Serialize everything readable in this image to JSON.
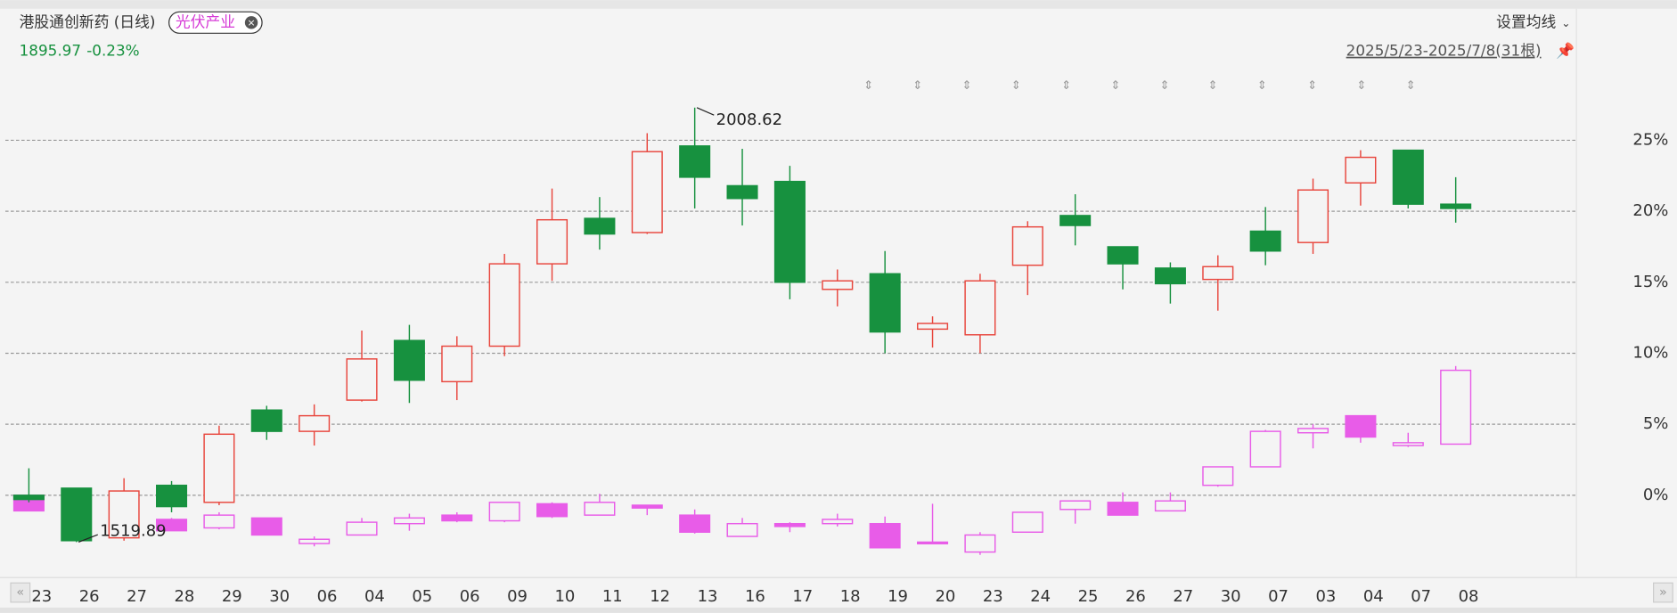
{
  "chart_data": {
    "type": "candlestick",
    "title": "港股通创新药 (日线)",
    "price_label": "1895.97",
    "change_label": "-0.23%",
    "ma_setting": "设置均线",
    "range_label": "2025/5/23-2025/7/8(31根)",
    "high_label": "2008.62",
    "low_label": "1519.89",
    "categories": [
      "23",
      "26",
      "27",
      "28",
      "29",
      "30",
      "06",
      "04",
      "05",
      "06",
      "09",
      "10",
      "11",
      "12",
      "13",
      "16",
      "17",
      "18",
      "19",
      "20",
      "23",
      "24",
      "25",
      "26",
      "27",
      "30",
      "07",
      "03",
      "04",
      "07",
      "08"
    ],
    "ylim": [
      -5.8,
      29.6
    ],
    "yticks": [
      {
        "value": 0,
        "label": "0%"
      },
      {
        "value": 5,
        "label": "5%"
      },
      {
        "value": 10,
        "label": "10%"
      },
      {
        "value": 15,
        "label": "15%"
      },
      {
        "value": 20,
        "label": "20%"
      },
      {
        "value": 25,
        "label": "25%"
      }
    ],
    "grid": true,
    "series": [
      {
        "up_color": "#e8453c",
        "down_color": "#17913f",
        "hollow_up": true,
        "open": [
          0.0,
          0.5,
          -3.0,
          0.7,
          -0.5,
          6.0,
          4.5,
          6.7,
          10.9,
          8.0,
          10.5,
          16.3,
          19.5,
          18.5,
          24.6,
          21.8,
          22.1,
          14.5,
          15.6,
          11.7,
          11.3,
          16.2,
          19.7,
          17.5,
          16.0,
          15.2,
          18.6,
          17.8,
          22.0,
          24.3,
          20.5
        ],
        "high": [
          1.9,
          0.5,
          1.2,
          1.0,
          4.9,
          6.3,
          6.4,
          11.6,
          12.0,
          11.2,
          17.0,
          21.6,
          21.0,
          25.5,
          27.3,
          24.4,
          23.2,
          15.9,
          17.2,
          12.6,
          15.6,
          19.3,
          21.2,
          17.5,
          16.4,
          16.9,
          20.3,
          22.3,
          24.3,
          24.3,
          22.4
        ],
        "low": [
          -0.5,
          -3.3,
          -3.2,
          -1.2,
          -0.7,
          3.9,
          3.5,
          6.6,
          6.5,
          6.7,
          9.8,
          15.1,
          17.3,
          18.4,
          20.2,
          19.0,
          13.8,
          13.3,
          10.0,
          10.4,
          10.0,
          14.1,
          17.6,
          14.5,
          13.5,
          13.0,
          16.2,
          17.0,
          20.4,
          20.2,
          19.2
        ],
        "close": [
          -0.3,
          -3.2,
          0.3,
          -0.8,
          4.3,
          4.5,
          5.6,
          9.6,
          8.1,
          10.5,
          16.3,
          19.4,
          18.4,
          24.2,
          22.4,
          20.9,
          15.0,
          15.1,
          11.5,
          12.1,
          15.1,
          18.9,
          19.0,
          16.3,
          14.9,
          16.1,
          17.2,
          21.5,
          23.8,
          20.5,
          20.2
        ]
      },
      {
        "name": "光伏产业",
        "up_color": "#e85ce8",
        "down_color": "#e85ce8",
        "hollow_up": true,
        "open": [
          0.0,
          null,
          null,
          -1.7,
          -2.3,
          -1.6,
          -3.4,
          -2.8,
          -2.0,
          -1.4,
          -1.8,
          -0.6,
          -1.4,
          -0.7,
          -1.4,
          -2.9,
          -2.0,
          -2.0,
          -2.0,
          -3.3,
          -4.0,
          -2.6,
          -1.0,
          -0.5,
          -1.1,
          0.7,
          2.0,
          4.4,
          5.6,
          3.5,
          3.6
        ],
        "high": [
          0.0,
          null,
          null,
          -1.6,
          -1.2,
          -1.6,
          -2.9,
          -1.6,
          -1.3,
          -1.2,
          -0.5,
          -0.5,
          0.1,
          -0.7,
          -1.0,
          -1.6,
          -1.9,
          -1.3,
          -1.5,
          -0.6,
          -2.6,
          -1.2,
          -0.4,
          0.2,
          0.2,
          2.0,
          4.6,
          5.0,
          5.6,
          4.4,
          9.1
        ],
        "low": [
          -1.1,
          null,
          null,
          -2.5,
          -2.4,
          -2.8,
          -3.6,
          -2.8,
          -2.5,
          -1.9,
          -1.9,
          -1.6,
          -1.4,
          -1.4,
          -2.7,
          -2.9,
          -2.6,
          -2.2,
          -3.7,
          -3.4,
          -4.2,
          -2.6,
          -2.0,
          -1.4,
          -1.1,
          0.6,
          2.0,
          3.3,
          3.7,
          3.4,
          3.6
        ],
        "close": [
          -1.1,
          null,
          null,
          -2.5,
          -1.4,
          -2.8,
          -3.1,
          -1.9,
          -1.6,
          -1.8,
          -0.5,
          -1.5,
          -0.5,
          -0.9,
          -2.6,
          -2.0,
          -2.2,
          -1.7,
          -3.7,
          -3.3,
          -2.8,
          -1.2,
          -0.4,
          -1.4,
          -0.4,
          2.0,
          4.5,
          4.7,
          4.1,
          3.7,
          8.8
        ]
      }
    ]
  }
}
